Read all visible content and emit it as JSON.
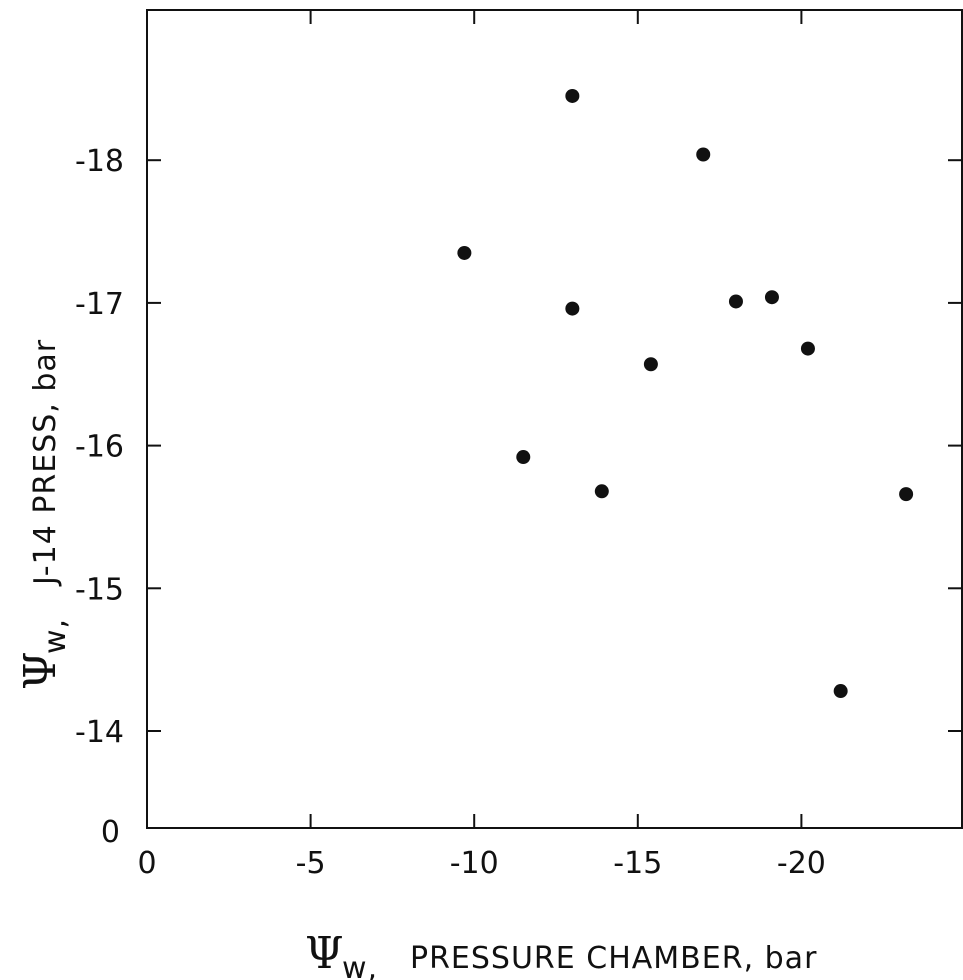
{
  "chart_data": {
    "type": "scatter",
    "xlabel": "Ψw, PRESSURE CHAMBER, bar",
    "ylabel": "Ψw, J-14 PRESS, bar",
    "xlabel_symbol": "Ψ",
    "xlabel_sub": "w,",
    "xlabel_rest": "PRESSURE CHAMBER, bar",
    "ylabel_symbol": "Ψ",
    "ylabel_sub": "w,",
    "ylabel_rest": "J-14 PRESS, bar",
    "xlim": [
      0,
      -25
    ],
    "ylim": [
      -13.3,
      -18.9
    ],
    "x_axis_break": "y-axis jumps from 0 to -14",
    "x_ticks": [
      0,
      -5,
      -10,
      -15,
      -20
    ],
    "x_tick_labels": [
      "0",
      "-5",
      "-10",
      "-15",
      "-20"
    ],
    "y_ticks": [
      -14,
      -15,
      -16,
      -17,
      -18
    ],
    "y_tick_labels": [
      "-14",
      "-15",
      "-16",
      "-17",
      "-18"
    ],
    "y_origin_label": "0",
    "grid": false,
    "points": [
      {
        "x": -9.7,
        "y": -17.35
      },
      {
        "x": -11.5,
        "y": -15.92
      },
      {
        "x": -13.0,
        "y": -18.45
      },
      {
        "x": -13.0,
        "y": -16.96
      },
      {
        "x": -13.9,
        "y": -15.68
      },
      {
        "x": -15.4,
        "y": -16.57
      },
      {
        "x": -17.0,
        "y": -18.04
      },
      {
        "x": -18.0,
        "y": -17.01
      },
      {
        "x": -19.1,
        "y": -17.04
      },
      {
        "x": -20.2,
        "y": -16.68
      },
      {
        "x": -21.2,
        "y": -14.28
      },
      {
        "x": -23.2,
        "y": -15.66
      }
    ]
  }
}
